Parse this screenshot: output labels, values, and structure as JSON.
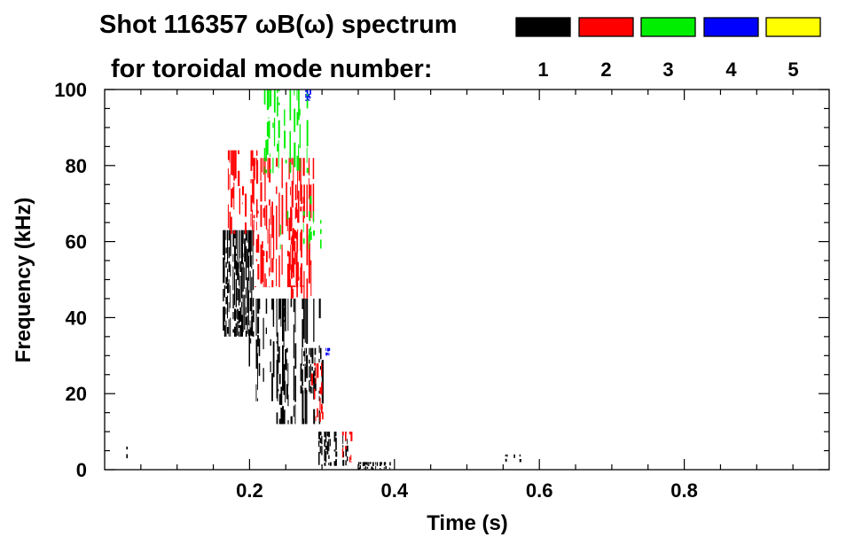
{
  "chart_data": {
    "type": "spectrogram",
    "title": "Shot 116357 ωB(ω) spectrum",
    "subtitle": "for toroidal mode number:",
    "xlabel": "Time (s)",
    "ylabel": "Frequency (kHz)",
    "xlim": [
      0.0,
      1.0
    ],
    "ylim": [
      0,
      100
    ],
    "xticks": [
      0.2,
      0.4,
      0.6,
      0.8
    ],
    "xtick_labels": [
      "0.2",
      "0.4",
      "0.6",
      "0.8"
    ],
    "yticks": [
      0,
      20,
      40,
      60,
      80,
      100
    ],
    "ytick_labels": [
      "0",
      "20",
      "40",
      "60",
      "80",
      "100"
    ],
    "legend": [
      {
        "mode": "1",
        "color": "#000000"
      },
      {
        "mode": "2",
        "color": "#ff0000"
      },
      {
        "mode": "3",
        "color": "#00ee00"
      },
      {
        "mode": "4",
        "color": "#0000ff"
      },
      {
        "mode": "5",
        "color": "#ffff00"
      }
    ],
    "regions": [
      {
        "mode": "1",
        "t": [
          0.163,
          0.205
        ],
        "f": [
          35,
          63
        ],
        "density": 0.85
      },
      {
        "mode": "1",
        "t": [
          0.195,
          0.25
        ],
        "f": [
          18,
          45
        ],
        "density": 0.5
      },
      {
        "mode": "1",
        "t": [
          0.235,
          0.3
        ],
        "f": [
          12,
          45
        ],
        "density": 0.55
      },
      {
        "mode": "1",
        "t": [
          0.27,
          0.3
        ],
        "f": [
          20,
          32
        ],
        "density": 0.6
      },
      {
        "mode": "1",
        "t": [
          0.295,
          0.335
        ],
        "f": [
          1,
          10
        ],
        "density": 0.65
      },
      {
        "mode": "1",
        "t": [
          0.35,
          0.4
        ],
        "f": [
          0,
          2
        ],
        "density": 0.6
      },
      {
        "mode": "1",
        "t": [
          0.024,
          0.036
        ],
        "f": [
          3,
          9
        ],
        "density": 0.3
      },
      {
        "mode": "1",
        "t": [
          0.545,
          0.575
        ],
        "f": [
          2,
          4
        ],
        "density": 0.25
      },
      {
        "mode": "2",
        "t": [
          0.17,
          0.215
        ],
        "f": [
          62,
          84
        ],
        "density": 0.5
      },
      {
        "mode": "2",
        "t": [
          0.205,
          0.29
        ],
        "f": [
          48,
          82
        ],
        "density": 0.55
      },
      {
        "mode": "2",
        "t": [
          0.255,
          0.295
        ],
        "f": [
          45,
          75
        ],
        "density": 0.35
      },
      {
        "mode": "2",
        "t": [
          0.285,
          0.3
        ],
        "f": [
          12,
          28
        ],
        "density": 0.5
      },
      {
        "mode": "2",
        "t": [
          0.3,
          0.31
        ],
        "f": [
          13,
          18
        ],
        "density": 0.5
      },
      {
        "mode": "2",
        "t": [
          0.32,
          0.345
        ],
        "f": [
          2,
          10
        ],
        "density": 0.3
      },
      {
        "mode": "3",
        "t": [
          0.22,
          0.28
        ],
        "f": [
          78,
          100
        ],
        "density": 0.5
      },
      {
        "mode": "3",
        "t": [
          0.27,
          0.3
        ],
        "f": [
          57,
          68
        ],
        "density": 0.45
      },
      {
        "mode": "3",
        "t": [
          0.24,
          0.285
        ],
        "f": [
          58,
          72
        ],
        "density": 0.2
      },
      {
        "mode": "4",
        "t": [
          0.277,
          0.285
        ],
        "f": [
          97,
          100
        ],
        "density": 0.7
      },
      {
        "mode": "4",
        "t": [
          0.305,
          0.309
        ],
        "f": [
          30,
          32
        ],
        "density": 0.8
      }
    ]
  }
}
